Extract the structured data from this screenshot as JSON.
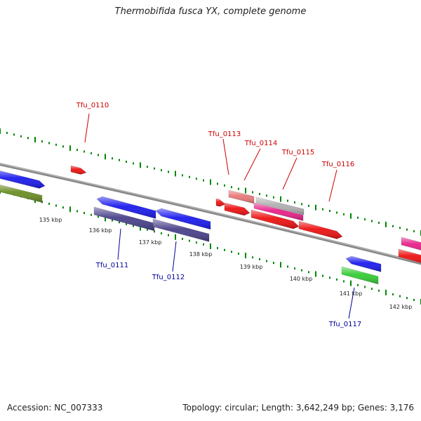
{
  "title": "Thermobifida fusca YX, complete genome",
  "footer": {
    "accession": "Accession: NC_007333",
    "summary": "Topology: circular; Length: 3,642,249 bp; Genes: 3,176"
  },
  "colors": {
    "forward_label": "#cc0000",
    "reverse_label": "#000099",
    "tick": "#008800",
    "backbone": "#888888"
  },
  "ticks": [
    {
      "label": "135 kbp"
    },
    {
      "label": "136 kbp"
    },
    {
      "label": "137 kbp"
    },
    {
      "label": "138 kbp"
    },
    {
      "label": "139 kbp"
    },
    {
      "label": "140 kbp"
    },
    {
      "label": "141 kbp"
    },
    {
      "label": "142 kbp"
    }
  ],
  "gene_labels": [
    {
      "name": "Tfu_0110",
      "strand": "forward"
    },
    {
      "name": "Tfu_0113",
      "strand": "forward"
    },
    {
      "name": "Tfu_0114",
      "strand": "forward"
    },
    {
      "name": "Tfu_0115",
      "strand": "forward"
    },
    {
      "name": "Tfu_0116",
      "strand": "forward"
    },
    {
      "name": "Tfu_0111",
      "strand": "reverse"
    },
    {
      "name": "Tfu_0112",
      "strand": "reverse"
    },
    {
      "name": "Tfu_0117",
      "strand": "reverse"
    }
  ],
  "features": [
    {
      "id": "blue-left",
      "color": "#1a1aee"
    },
    {
      "id": "olive-left",
      "color": "#6b8e23"
    },
    {
      "id": "tfu0110",
      "color": "#ee1111"
    },
    {
      "id": "blue-2",
      "color": "#1a1aee"
    },
    {
      "id": "slate-1",
      "color": "#48408a"
    },
    {
      "id": "blue-3",
      "color": "#1a1aee"
    },
    {
      "id": "slate-2",
      "color": "#48408a"
    },
    {
      "id": "red-small",
      "color": "#ee1111"
    },
    {
      "id": "salmon",
      "color": "#e87878"
    },
    {
      "id": "red-2",
      "color": "#ee1111"
    },
    {
      "id": "silver",
      "color": "#b0b0b0"
    },
    {
      "id": "pink",
      "color": "#e8208a"
    },
    {
      "id": "red-3",
      "color": "#ee1111"
    },
    {
      "id": "red-4",
      "color": "#ee1111"
    },
    {
      "id": "blue-4",
      "color": "#1a1aee"
    },
    {
      "id": "green",
      "color": "#33cc33"
    },
    {
      "id": "magenta-right",
      "color": "#e8208a"
    },
    {
      "id": "red-right",
      "color": "#ee1111"
    }
  ]
}
